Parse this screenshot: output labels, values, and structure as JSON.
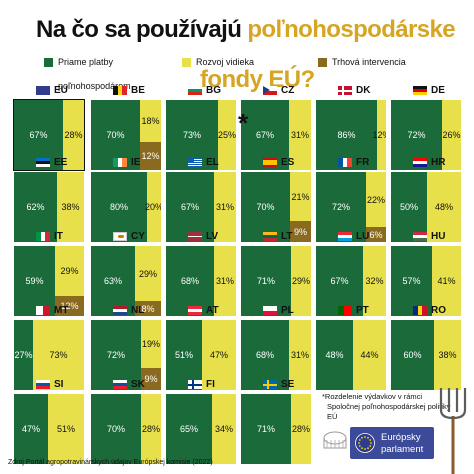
{
  "title": {
    "part1": "Na čo sa používajú ",
    "part2": "poľnohospodárske",
    "part3": "fondy EÚ?"
  },
  "legend": {
    "direct": "Priame platby",
    "direct_l2": "poľnohospodárom",
    "rural": "Rozvoj vidieka",
    "market": "Trhová intervencia"
  },
  "colors": {
    "direct": "#1b6a3a",
    "rural": "#e8e04a",
    "market": "#8a6a1e",
    "title_accent": "#d6a524"
  },
  "note": {
    "line1": "*Rozdelenie výdavkov v rámci",
    "line2": "Spoločnej poľnohospodárskej politiky",
    "line3": "EÚ"
  },
  "source": "Zdroj Portál agropotravinárskych údajov Európskej komisie (2022)",
  "logo": {
    "line1": "Európsky",
    "line2": "parlament"
  },
  "chart_data": {
    "type": "bar",
    "unit": "%",
    "series_names": [
      "Priame platby poľnohospodárom",
      "Rozvoj vidieka",
      "Trhová intervencia"
    ],
    "countries": [
      {
        "code": "EU",
        "flag": "eu",
        "direct": 67,
        "rural": 28,
        "market": null,
        "highlight": true
      },
      {
        "code": "BE",
        "flag": "be",
        "direct": 70,
        "rural": 18,
        "market": 12
      },
      {
        "code": "BG",
        "flag": "bg",
        "direct": 73,
        "rural": 25,
        "market": null
      },
      {
        "code": "CZ",
        "flag": "cz",
        "direct": 67,
        "rural": 31,
        "market": null
      },
      {
        "code": "DK",
        "flag": "dk",
        "direct": 86,
        "rural": 12,
        "market": null
      },
      {
        "code": "DE",
        "flag": "de",
        "direct": 72,
        "rural": 26,
        "market": null
      },
      {
        "code": "EE",
        "flag": "ee",
        "direct": 62,
        "rural": 38,
        "market": null
      },
      {
        "code": "IE",
        "flag": "ie",
        "direct": 80,
        "rural": 20,
        "market": null
      },
      {
        "code": "EL",
        "flag": "el",
        "direct": 67,
        "rural": 31,
        "market": null
      },
      {
        "code": "ES",
        "flag": "es",
        "direct": 70,
        "rural": 21,
        "market": 9
      },
      {
        "code": "FR",
        "flag": "fr",
        "direct": 72,
        "rural": 22,
        "market": 6
      },
      {
        "code": "HR",
        "flag": "hr",
        "direct": 50,
        "rural": 48,
        "market": null
      },
      {
        "code": "IT",
        "flag": "it",
        "direct": 59,
        "rural": 29,
        "market": 12
      },
      {
        "code": "CY",
        "flag": "cy",
        "direct": 63,
        "rural": 29,
        "market": 8
      },
      {
        "code": "LV",
        "flag": "lv",
        "direct": 68,
        "rural": 31,
        "market": null
      },
      {
        "code": "LT",
        "flag": "lt",
        "direct": 71,
        "rural": 29,
        "market": null
      },
      {
        "code": "LU",
        "flag": "lu",
        "direct": 67,
        "rural": 32,
        "market": null
      },
      {
        "code": "HU",
        "flag": "hu",
        "direct": 57,
        "rural": 41,
        "market": null
      },
      {
        "code": "MT",
        "flag": "mt",
        "direct": 27,
        "rural": 73,
        "market": null
      },
      {
        "code": "NL",
        "flag": "nl",
        "direct": 72,
        "rural": 19,
        "market": 9
      },
      {
        "code": "AT",
        "flag": "at",
        "direct": 51,
        "rural": 47,
        "market": null
      },
      {
        "code": "PL",
        "flag": "pl",
        "direct": 68,
        "rural": 31,
        "market": null
      },
      {
        "code": "PT",
        "flag": "pt",
        "direct": 48,
        "rural": 44,
        "market": null
      },
      {
        "code": "RO",
        "flag": "ro",
        "direct": 60,
        "rural": 38,
        "market": null
      },
      {
        "code": "SI",
        "flag": "si",
        "direct": 47,
        "rural": 51,
        "market": null
      },
      {
        "code": "SK",
        "flag": "sk",
        "direct": 70,
        "rural": 28,
        "market": null
      },
      {
        "code": "FI",
        "flag": "fi",
        "direct": 65,
        "rural": 34,
        "market": null
      },
      {
        "code": "SE",
        "flag": "se",
        "direct": 71,
        "rural": 28,
        "market": null
      }
    ]
  }
}
